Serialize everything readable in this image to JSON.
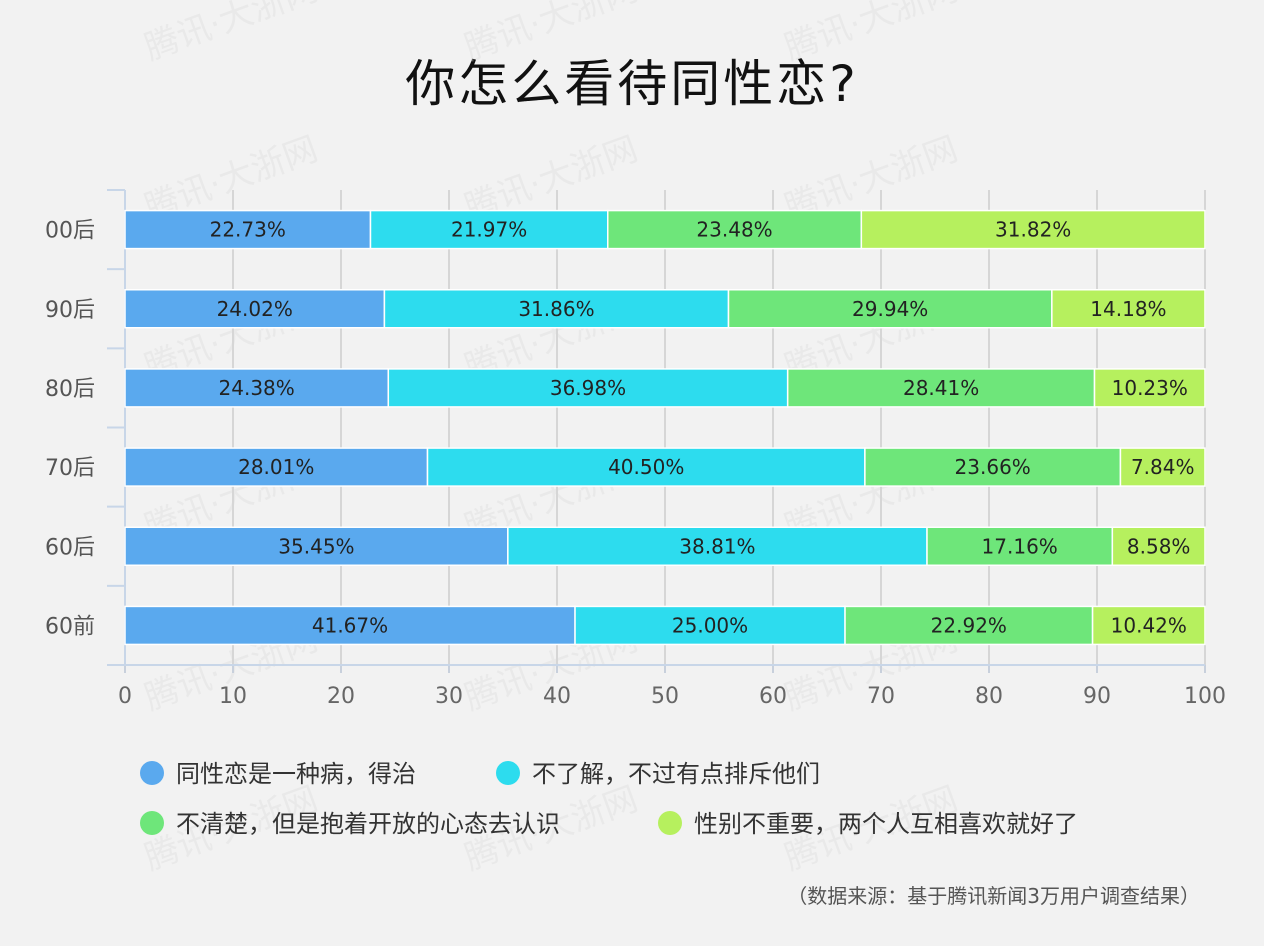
{
  "title": "你怎么看待同性恋?",
  "source": "（数据来源：基于腾讯新闻3万用户调查结果）",
  "watermark": "腾讯·大浙网",
  "chart_data": {
    "type": "bar",
    "orientation": "horizontal",
    "stacked": true,
    "categories": [
      "00后",
      "90后",
      "80后",
      "70后",
      "60后",
      "60前"
    ],
    "series": [
      {
        "name": "同性恋是一种病，得治",
        "color": "#5aa9ee",
        "values": [
          22.73,
          24.02,
          24.38,
          28.01,
          35.45,
          41.67
        ]
      },
      {
        "name": "不了解，不过有点排斥他们",
        "color": "#2ddcee",
        "values": [
          21.97,
          31.86,
          36.98,
          40.5,
          38.81,
          25.0
        ]
      },
      {
        "name": "不清楚，但是抱着开放的心态去认识",
        "color": "#6ee67a",
        "values": [
          23.48,
          29.94,
          28.41,
          23.66,
          17.16,
          22.92
        ]
      },
      {
        "name": "性别不重要，两个人互相喜欢就好了",
        "color": "#b6f05e",
        "values": [
          31.82,
          14.18,
          10.23,
          7.84,
          8.58,
          10.42
        ]
      }
    ],
    "data_labels": [
      [
        "22.73%",
        "24.02%",
        "24.38%",
        "28.01%",
        "35.45%",
        "41.67%"
      ],
      [
        "21.97%",
        "31.86%",
        "36.98%",
        "40.50%",
        "38.81%",
        "25.00%"
      ],
      [
        "23.48%",
        "29.94%",
        "28.41%",
        "23.66%",
        "17.16%",
        "22.92%"
      ],
      [
        "31.82%",
        "14.18%",
        "10.23%",
        "7.84%",
        "8.58%",
        "10.42%"
      ]
    ],
    "xticks": [
      "0",
      "10",
      "20",
      "30",
      "40",
      "50",
      "60",
      "70",
      "80",
      "90",
      "100"
    ],
    "xlim": [
      0,
      100
    ],
    "grid": true,
    "legend_position": "bottom"
  }
}
